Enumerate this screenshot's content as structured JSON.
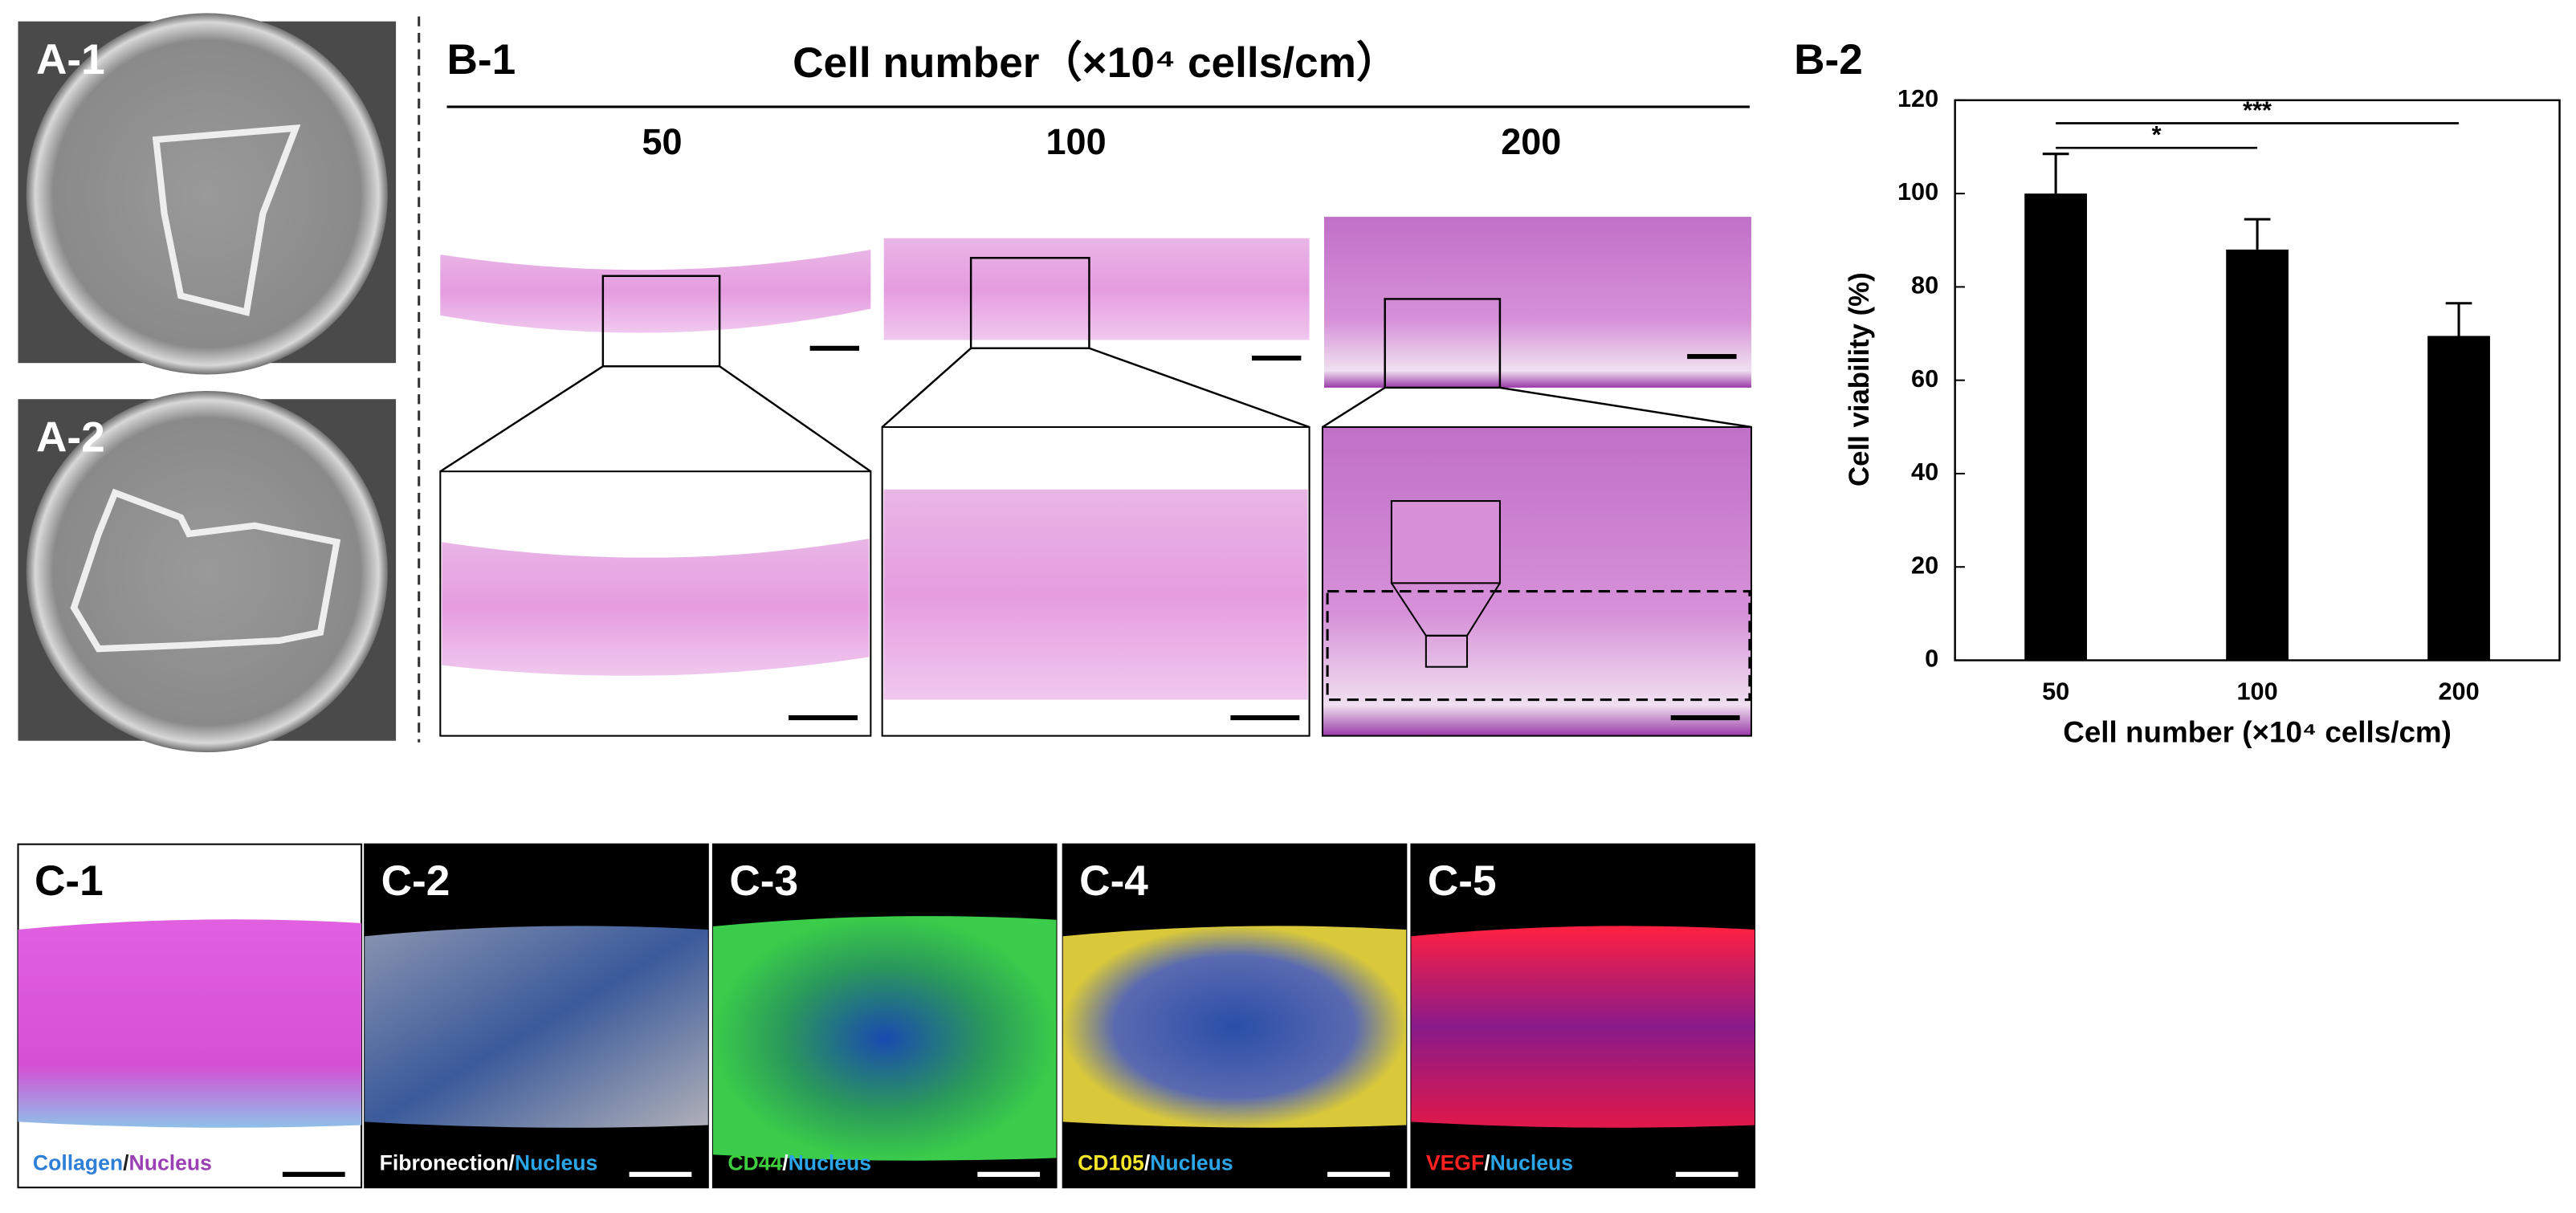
{
  "a_panels": [
    {
      "label": "A-1"
    },
    {
      "label": "A-2"
    }
  ],
  "b1": {
    "label": "B-1",
    "header": "Cell number（×10⁴ cells/cm）",
    "columns": [
      "50",
      "100",
      "200"
    ]
  },
  "b2": {
    "label": "B-2"
  },
  "c_panels": [
    {
      "label": "C-1",
      "caption": [
        {
          "text": "Collagen",
          "color": "#2e7fd8"
        },
        {
          "text": "/",
          "color": "#222222"
        },
        {
          "text": "Nucleus",
          "color": "#9b3fb5"
        }
      ]
    },
    {
      "label": "C-2",
      "caption": [
        {
          "text": "Fibronection",
          "color": "#ffffff"
        },
        {
          "text": "/",
          "color": "#ffffff"
        },
        {
          "text": "Nucleus",
          "color": "#2aa5e8"
        }
      ]
    },
    {
      "label": "C-3",
      "caption": [
        {
          "text": "CD44",
          "color": "#3ecf3e"
        },
        {
          "text": "/",
          "color": "#ffffff"
        },
        {
          "text": "Nucleus",
          "color": "#2aa5e8"
        }
      ]
    },
    {
      "label": "C-4",
      "caption": [
        {
          "text": "CD105",
          "color": "#f5e52a"
        },
        {
          "text": "/",
          "color": "#ffffff"
        },
        {
          "text": "Nucleus",
          "color": "#2aa5e8"
        }
      ]
    },
    {
      "label": "C-5",
      "caption": [
        {
          "text": "VEGF",
          "color": "#ff2020"
        },
        {
          "text": "/",
          "color": "#ffffff"
        },
        {
          "text": "Nucleus",
          "color": "#2aa5e8"
        }
      ]
    }
  ],
  "chart_data": {
    "type": "bar",
    "categories": [
      "50",
      "100",
      "200"
    ],
    "values": [
      100,
      88,
      69.5
    ],
    "errors": [
      8.5,
      6.5,
      7
    ],
    "color": "#000000",
    "ylim": [
      0,
      120
    ],
    "yticks": [
      0,
      20,
      40,
      60,
      80,
      100,
      120
    ],
    "ylabel": "Cell viability (%)",
    "xlabel": "Cell number (×10⁴ cells/cm)",
    "significance": [
      "*",
      "***"
    ]
  }
}
